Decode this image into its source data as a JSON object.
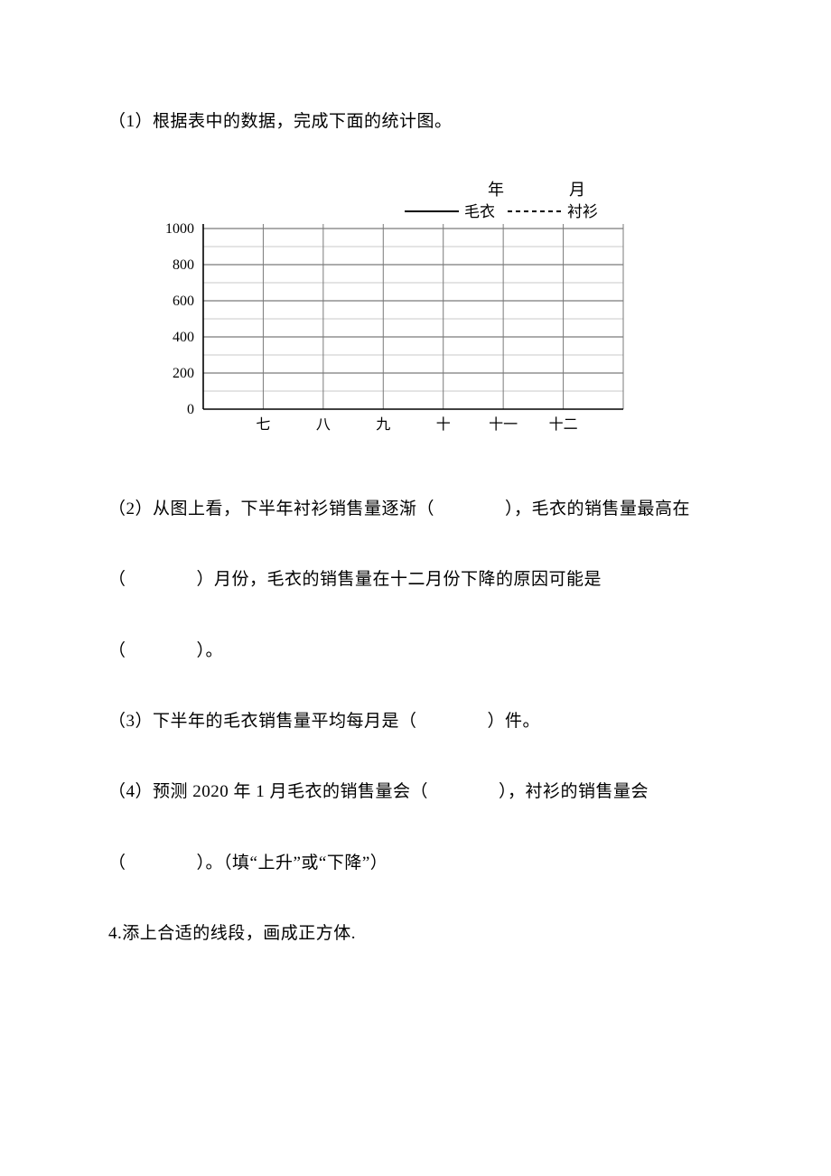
{
  "q1": {
    "text": "（1）根据表中的数据，完成下面的统计图。"
  },
  "chart": {
    "type": "line",
    "top_labels": {
      "year": "年",
      "month": "月"
    },
    "legend": [
      {
        "label": "毛衣",
        "style": "solid"
      },
      {
        "label": "衬衫",
        "style": "dashed"
      }
    ],
    "y_ticks": [
      "0",
      "200",
      "400",
      "600",
      "800",
      "1000"
    ],
    "x_ticks": [
      "七",
      "八",
      "九",
      "十",
      "十一",
      "十二"
    ],
    "xlim": [
      0,
      7
    ],
    "ylim": [
      0,
      1000
    ],
    "colors": {
      "axis": "#000000",
      "grid_major": "#7a7a7a",
      "grid_minor": "#b8b8b8",
      "background": "#ffffff",
      "line_solid": "#000000",
      "line_dashed": "#000000"
    },
    "line_width_major": 1.2,
    "line_width_minor": 0.8,
    "tick_fontsize": 16,
    "legend_fontsize": 17
  },
  "q2": {
    "part_a": "（2）从图上看，下半年衬衫销售量逐渐（",
    "part_a_end": "），毛衣的销售量最高在",
    "part_b": "（",
    "part_b_end": "）月份，毛衣的销售量在十二月份下降的原因可能是",
    "part_c": "（",
    "part_c_end": "）。"
  },
  "q3": {
    "part_a": "（3）下半年的毛衣销售量平均每月是（",
    "part_a_end": "）件。"
  },
  "q4": {
    "part_a": "（4）预测 2020 年 1 月毛衣的销售量会（",
    "part_a_end": "），衬衫的销售量会",
    "part_b": "（",
    "part_b_end": "）。（填“上升”或“下降”）"
  },
  "q5": {
    "text": "4.添上合适的线段，画成正方体."
  },
  "blanks": {
    "wide": "　　　　",
    "narrow": "　　　　"
  }
}
